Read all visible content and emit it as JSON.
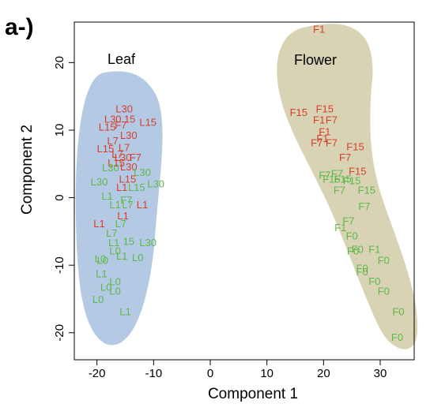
{
  "panel_label": "a-)",
  "chart_data": {
    "type": "scatter",
    "title": "",
    "xlabel": "Component  1",
    "ylabel": "Component 2",
    "xlim": [
      -24,
      36
    ],
    "ylim": [
      -24,
      26
    ],
    "xticks": [
      -20,
      -10,
      0,
      10,
      20,
      30
    ],
    "yticks": [
      -20,
      -10,
      0,
      10,
      20
    ],
    "grid": false,
    "colors": {
      "red": "#d6402a",
      "green": "#5fb84a",
      "leaf_region": "#b3c9e4",
      "flower_region": "#d8d3b4"
    },
    "regions": [
      {
        "name": "Leaf",
        "color": "#b3c9e4"
      },
      {
        "name": "Flower",
        "color": "#d8d3b4"
      }
    ],
    "points": [
      {
        "label": "L30",
        "x": -15.2,
        "y": 13.2,
        "color": "red"
      },
      {
        "label": "L30",
        "x": -17.2,
        "y": 11.7,
        "color": "red"
      },
      {
        "label": "15",
        "x": -14.2,
        "y": 11.7,
        "color": "red"
      },
      {
        "label": "L15",
        "x": -18.2,
        "y": 10.5,
        "color": "red"
      },
      {
        "label": "F7",
        "x": -15.8,
        "y": 10.8,
        "color": "red"
      },
      {
        "label": "L15",
        "x": -11.0,
        "y": 11.2,
        "color": "red"
      },
      {
        "label": "L30",
        "x": -14.4,
        "y": 9.3,
        "color": "red"
      },
      {
        "label": "L7",
        "x": -17.2,
        "y": 8.5,
        "color": "red"
      },
      {
        "label": "L7",
        "x": -15.2,
        "y": 7.5,
        "color": "red"
      },
      {
        "label": "L15",
        "x": -18.5,
        "y": 7.3,
        "color": "red"
      },
      {
        "label": "L7",
        "x": -16.4,
        "y": 6.5,
        "color": "red"
      },
      {
        "label": "L30",
        "x": -15.4,
        "y": 6.0,
        "color": "red"
      },
      {
        "label": "F7",
        "x": -13.2,
        "y": 6.0,
        "color": "red"
      },
      {
        "label": "L15",
        "x": -16.6,
        "y": 5.2,
        "color": "red"
      },
      {
        "label": "L30",
        "x": -14.4,
        "y": 4.6,
        "color": "red"
      },
      {
        "label": "L30",
        "x": -17.6,
        "y": 4.5,
        "color": "green"
      },
      {
        "label": "L30",
        "x": -12.0,
        "y": 3.8,
        "color": "green"
      },
      {
        "label": "L30",
        "x": -19.6,
        "y": 2.4,
        "color": "green"
      },
      {
        "label": "L15",
        "x": -14.6,
        "y": 2.8,
        "color": "red"
      },
      {
        "label": "L30",
        "x": -9.6,
        "y": 2.1,
        "color": "green"
      },
      {
        "label": "L1",
        "x": -15.6,
        "y": 1.6,
        "color": "red"
      },
      {
        "label": "L15",
        "x": -13.0,
        "y": 1.6,
        "color": "green"
      },
      {
        "label": "L1",
        "x": -18.2,
        "y": 0.3,
        "color": "green"
      },
      {
        "label": "F7",
        "x": -14.8,
        "y": -0.3,
        "color": "green"
      },
      {
        "label": "L1",
        "x": -16.8,
        "y": -1.0,
        "color": "green"
      },
      {
        "label": "L7",
        "x": -14.6,
        "y": -1.0,
        "color": "green"
      },
      {
        "label": "L1",
        "x": -12.0,
        "y": -1.0,
        "color": "red"
      },
      {
        "label": "L1",
        "x": -15.4,
        "y": -2.6,
        "color": "red"
      },
      {
        "label": "L1",
        "x": -19.6,
        "y": -3.8,
        "color": "red"
      },
      {
        "label": "L7",
        "x": -15.8,
        "y": -3.8,
        "color": "green"
      },
      {
        "label": "L7",
        "x": -17.4,
        "y": -5.2,
        "color": "green"
      },
      {
        "label": "L1",
        "x": -17.0,
        "y": -6.6,
        "color": "green"
      },
      {
        "label": "15",
        "x": -14.4,
        "y": -6.4,
        "color": "green"
      },
      {
        "label": "L30",
        "x": -11.0,
        "y": -6.6,
        "color": "green"
      },
      {
        "label": "L0",
        "x": -16.8,
        "y": -7.8,
        "color": "green"
      },
      {
        "label": "L1",
        "x": -15.6,
        "y": -8.6,
        "color": "green"
      },
      {
        "label": "L0",
        "x": -12.8,
        "y": -8.8,
        "color": "green"
      },
      {
        "label": "L0",
        "x": -19.4,
        "y": -9.0,
        "color": "green"
      },
      {
        "label": "L0",
        "x": -19.0,
        "y": -9.2,
        "color": "green"
      },
      {
        "label": "L1",
        "x": -19.2,
        "y": -11.2,
        "color": "green"
      },
      {
        "label": "L0",
        "x": -16.8,
        "y": -12.4,
        "color": "green"
      },
      {
        "label": "L0",
        "x": -18.4,
        "y": -13.2,
        "color": "green"
      },
      {
        "label": "L0",
        "x": -16.8,
        "y": -13.8,
        "color": "green"
      },
      {
        "label": "L0",
        "x": -19.8,
        "y": -15.0,
        "color": "green"
      },
      {
        "label": "L1",
        "x": -15.0,
        "y": -16.8,
        "color": "green"
      },
      {
        "label": "F1",
        "x": 19.2,
        "y": 25.0,
        "color": "red"
      },
      {
        "label": "F15",
        "x": 15.6,
        "y": 12.7,
        "color": "red"
      },
      {
        "label": "F15",
        "x": 20.2,
        "y": 13.2,
        "color": "red"
      },
      {
        "label": "F1",
        "x": 19.2,
        "y": 11.6,
        "color": "red"
      },
      {
        "label": "F7",
        "x": 21.4,
        "y": 11.6,
        "color": "red"
      },
      {
        "label": "F1",
        "x": 20.2,
        "y": 9.8,
        "color": "red"
      },
      {
        "label": "F1",
        "x": 19.8,
        "y": 8.8,
        "color": "red"
      },
      {
        "label": "F7",
        "x": 18.8,
        "y": 8.2,
        "color": "red"
      },
      {
        "label": "F7",
        "x": 21.4,
        "y": 8.2,
        "color": "red"
      },
      {
        "label": "F15",
        "x": 25.6,
        "y": 7.6,
        "color": "red"
      },
      {
        "label": "F7",
        "x": 23.8,
        "y": 6.0,
        "color": "red"
      },
      {
        "label": "F15",
        "x": 26.0,
        "y": 4.0,
        "color": "red"
      },
      {
        "label": "F7",
        "x": 20.2,
        "y": 3.4,
        "color": "green"
      },
      {
        "label": "F7",
        "x": 22.4,
        "y": 3.6,
        "color": "green"
      },
      {
        "label": "F15",
        "x": 21.4,
        "y": 2.8,
        "color": "green"
      },
      {
        "label": "F15",
        "x": 23.4,
        "y": 2.8,
        "color": "green"
      },
      {
        "label": "F15",
        "x": 25.0,
        "y": 2.6,
        "color": "green"
      },
      {
        "label": "F7",
        "x": 22.8,
        "y": 1.2,
        "color": "green"
      },
      {
        "label": "F15",
        "x": 27.6,
        "y": 1.2,
        "color": "green"
      },
      {
        "label": "F7",
        "x": 27.2,
        "y": -1.2,
        "color": "green"
      },
      {
        "label": "F7",
        "x": 24.4,
        "y": -3.4,
        "color": "green"
      },
      {
        "label": "F1",
        "x": 23.0,
        "y": -4.4,
        "color": "green"
      },
      {
        "label": "F0",
        "x": 25.0,
        "y": -5.6,
        "color": "green"
      },
      {
        "label": "F0",
        "x": 25.2,
        "y": -7.8,
        "color": "green"
      },
      {
        "label": "F0",
        "x": 26.0,
        "y": -7.6,
        "color": "green"
      },
      {
        "label": "F1",
        "x": 29.0,
        "y": -7.6,
        "color": "green"
      },
      {
        "label": "F0",
        "x": 30.6,
        "y": -9.2,
        "color": "green"
      },
      {
        "label": "F0",
        "x": 26.8,
        "y": -10.4,
        "color": "green"
      },
      {
        "label": "F0",
        "x": 26.8,
        "y": -10.9,
        "color": "green"
      },
      {
        "label": "F0",
        "x": 29.0,
        "y": -12.3,
        "color": "green"
      },
      {
        "label": "F0",
        "x": 30.6,
        "y": -13.8,
        "color": "green"
      },
      {
        "label": "F0",
        "x": 33.2,
        "y": -16.8,
        "color": "green"
      },
      {
        "label": "F0",
        "x": 33.0,
        "y": -20.6,
        "color": "green"
      }
    ]
  }
}
